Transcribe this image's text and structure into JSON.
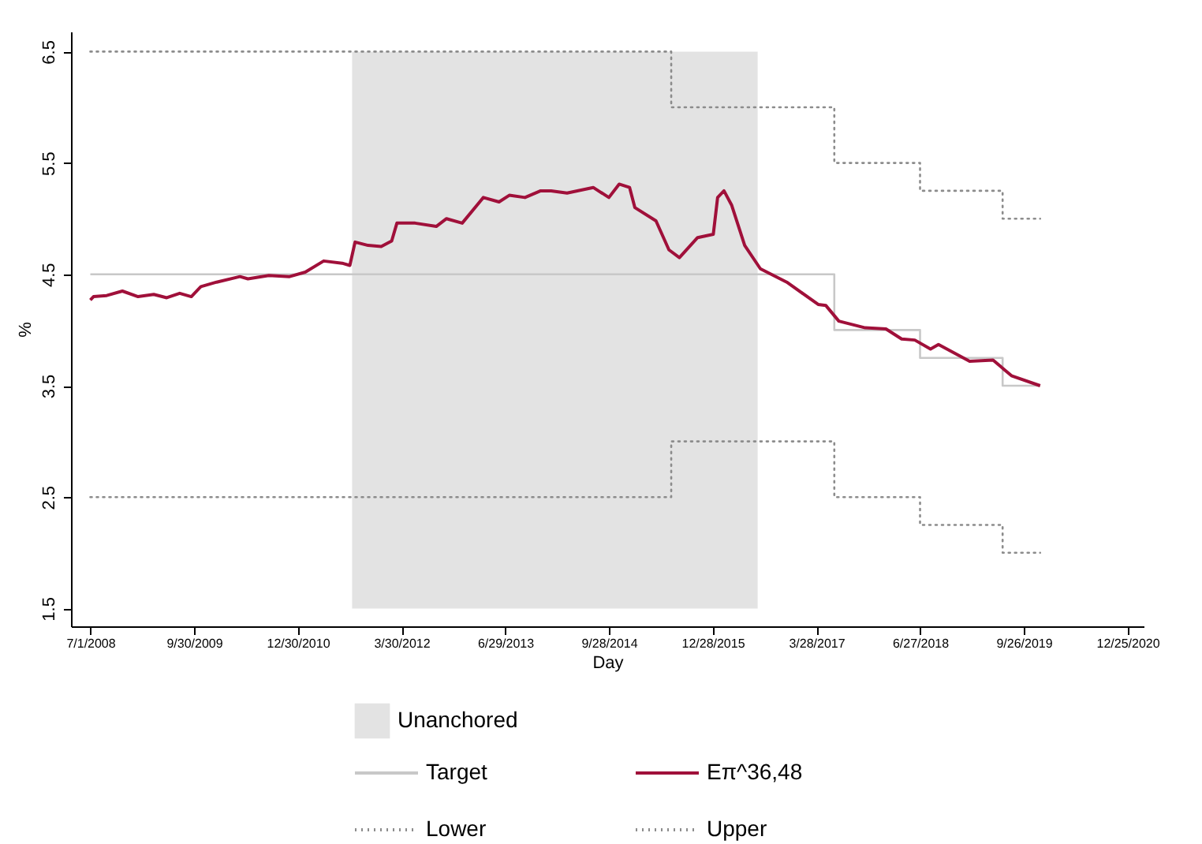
{
  "chart_data": {
    "type": "line",
    "xlabel": "Day",
    "ylabel": "%",
    "xlim": [
      "2008-04-07",
      "2021-03-06"
    ],
    "ylim": [
      1.34,
      6.68
    ],
    "xticks": [
      {
        "value": "2008-07-01",
        "label": "7/1/2008"
      },
      {
        "value": "2009-09-30",
        "label": "9/30/2009"
      },
      {
        "value": "2010-12-30",
        "label": "12/30/2010"
      },
      {
        "value": "2012-03-30",
        "label": "3/30/2012"
      },
      {
        "value": "2013-06-29",
        "label": "6/29/2013"
      },
      {
        "value": "2014-09-28",
        "label": "9/28/2014"
      },
      {
        "value": "2015-12-28",
        "label": "12/28/2015"
      },
      {
        "value": "2017-03-28",
        "label": "3/28/2017"
      },
      {
        "value": "2018-06-27",
        "label": "6/27/2018"
      },
      {
        "value": "2019-09-26",
        "label": "9/26/2019"
      },
      {
        "value": "2020-12-25",
        "label": "12/25/2020"
      }
    ],
    "yticks": [
      1.5,
      2.5,
      3.5,
      4.5,
      5.5,
      6.5
    ],
    "grid": false,
    "legend": "bottom",
    "bands": [
      {
        "axis": "x",
        "from": "2011-08-26",
        "to": "2016-07-13",
        "label": "Unanchored",
        "color": "#e3e3e3"
      }
    ],
    "series": [
      {
        "name": "Target",
        "type": "step",
        "color": "#c8c8c8",
        "line_style": "solid",
        "x": [
          "2008-07-01",
          "2017-06-15",
          "2018-06-27",
          "2019-06-25",
          "2019-12-07"
        ],
        "values": [
          4.5,
          4.0,
          3.75,
          3.5,
          3.5
        ]
      },
      {
        "name": "Eπ^36,48",
        "type": "line",
        "color": "#a0103a",
        "line_style": "solid",
        "x": [
          "2008-07-01",
          "2008-07-15",
          "2008-09-11",
          "2008-11-19",
          "2009-01-27",
          "2009-04-06",
          "2009-06-02",
          "2009-07-29",
          "2009-09-18",
          "2009-10-30",
          "2010-01-07",
          "2010-04-20",
          "2010-05-25",
          "2010-08-25",
          "2010-11-24",
          "2011-02-01",
          "2011-04-23",
          "2011-07-13",
          "2011-08-16",
          "2011-09-08",
          "2011-11-04",
          "2012-01-01",
          "2012-02-16",
          "2012-03-10",
          "2012-05-29",
          "2012-08-30",
          "2012-10-14",
          "2012-12-22",
          "2013-03-25",
          "2013-06-02",
          "2013-07-17",
          "2013-09-24",
          "2013-12-02",
          "2014-01-17",
          "2014-03-28",
          "2014-07-21",
          "2014-09-28",
          "2014-11-12",
          "2014-12-28",
          "2015-01-20",
          "2015-04-23",
          "2015-06-19",
          "2015-08-04",
          "2015-10-23",
          "2015-12-31",
          "2016-01-19",
          "2016-02-16",
          "2016-03-21",
          "2016-05-17",
          "2016-07-25",
          "2016-11-18",
          "2017-04-05",
          "2017-05-09",
          "2017-07-05",
          "2017-10-29",
          "2018-01-28",
          "2018-04-07",
          "2018-06-04",
          "2018-08-12",
          "2018-09-16",
          "2019-01-31",
          "2019-05-14",
          "2019-08-03",
          "2019-12-07"
        ],
        "values": [
          4.27,
          4.3,
          4.31,
          4.35,
          4.3,
          4.32,
          4.29,
          4.33,
          4.3,
          4.39,
          4.43,
          4.48,
          4.46,
          4.49,
          4.48,
          4.52,
          4.62,
          4.6,
          4.58,
          4.79,
          4.76,
          4.75,
          4.8,
          4.96,
          4.96,
          4.93,
          5.0,
          4.96,
          5.19,
          5.15,
          5.21,
          5.19,
          5.25,
          5.25,
          5.23,
          5.28,
          5.19,
          5.31,
          5.28,
          5.1,
          4.98,
          4.72,
          4.65,
          4.83,
          4.86,
          5.19,
          5.25,
          5.12,
          4.76,
          4.55,
          4.43,
          4.23,
          4.22,
          4.08,
          4.02,
          4.01,
          3.92,
          3.91,
          3.83,
          3.87,
          3.72,
          3.73,
          3.59,
          3.5
        ]
      },
      {
        "name": "Lower",
        "type": "step",
        "color": "#8c8c8c",
        "line_style": "dotted",
        "x": [
          "2008-07-01",
          "2015-06-29",
          "2017-06-15",
          "2018-06-27",
          "2019-06-25",
          "2019-12-07"
        ],
        "values": [
          2.5,
          3.0,
          2.5,
          2.25,
          2.0,
          2.0
        ]
      },
      {
        "name": "Upper",
        "type": "step",
        "color": "#8c8c8c",
        "line_style": "dotted",
        "x": [
          "2008-07-01",
          "2015-06-29",
          "2017-06-15",
          "2018-06-27",
          "2019-06-25",
          "2019-12-07"
        ],
        "values": [
          6.5,
          6.0,
          5.5,
          5.25,
          5.0,
          5.0
        ]
      }
    ]
  }
}
